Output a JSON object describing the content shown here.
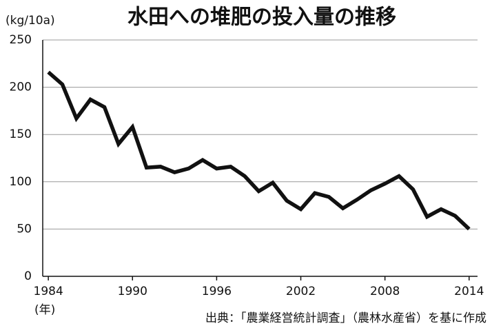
{
  "chart_data": {
    "type": "line",
    "title": "水田への堆肥の投入量の推移",
    "y_label": "(kg/10a)",
    "x_label": "(年)",
    "source": "出典：「農業経営統計調査」（農林水産省）を基に作成",
    "x": [
      1984,
      1985,
      1986,
      1987,
      1988,
      1989,
      1990,
      1991,
      1992,
      1993,
      1994,
      1995,
      1996,
      1997,
      1998,
      1999,
      2000,
      2001,
      2002,
      2003,
      2004,
      2005,
      2006,
      2007,
      2008,
      2009,
      2010,
      2011,
      2012,
      2013,
      2014
    ],
    "series": [
      {
        "color": "#111111",
        "values": [
          216,
          203,
          167,
          187,
          179,
          140,
          158,
          115,
          116,
          110,
          114,
          123,
          114,
          116,
          106,
          90,
          99,
          80,
          71,
          88,
          84,
          72,
          81,
          91,
          98,
          106,
          92,
          63,
          71,
          64,
          50
        ]
      }
    ],
    "xlim": [
      1983.6,
      2014.6
    ],
    "xticks": [
      1984,
      1990,
      1996,
      2002,
      2008,
      2014
    ],
    "ylim": [
      0,
      250
    ],
    "yticks": [
      0,
      50,
      100,
      150,
      200,
      250
    ],
    "grid": true
  }
}
